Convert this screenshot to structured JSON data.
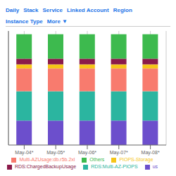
{
  "chart_data": {
    "type": "bar",
    "stacked": true,
    "annotations": [
      "Daily",
      "Stack",
      "Service",
      "Linked Account",
      "Region",
      "Instance Type",
      "More ▼"
    ],
    "categories": [
      "May-04*",
      "May-05*",
      "May-06*",
      "May-07*",
      "May-08*"
    ],
    "series": [
      {
        "name": "us",
        "color": "#6c4fcc",
        "values": [
          1.5,
          1.5,
          1.5,
          1.5,
          1.5
        ]
      },
      {
        "name": "RDS:Multi-AZ-PIOPS",
        "color": "#2bb5a0",
        "values": [
          1.8,
          1.8,
          1.8,
          1.8,
          1.8
        ]
      },
      {
        "name": "Multi-AZUsage:db.r5b.2xl",
        "color": "#f87b6e",
        "values": [
          1.4,
          1.4,
          1.4,
          1.4,
          1.4
        ]
      },
      {
        "name": "PIOPS-Storage",
        "color": "#f5c518",
        "values": [
          0.25,
          0.25,
          0.25,
          0.25,
          0.25
        ]
      },
      {
        "name": "RDS:ChargedBackupUsage",
        "color": "#8b1a4a",
        "values": [
          0.35,
          0.35,
          0.35,
          0.35,
          0.35
        ]
      },
      {
        "name": "Others",
        "color": "#3dba4e",
        "values": [
          1.5,
          1.5,
          1.5,
          1.5,
          1.5
        ]
      }
    ],
    "ylim": [
      0,
      7.0
    ],
    "grid": true,
    "tick_labels": "x",
    "legend": "bottom"
  }
}
